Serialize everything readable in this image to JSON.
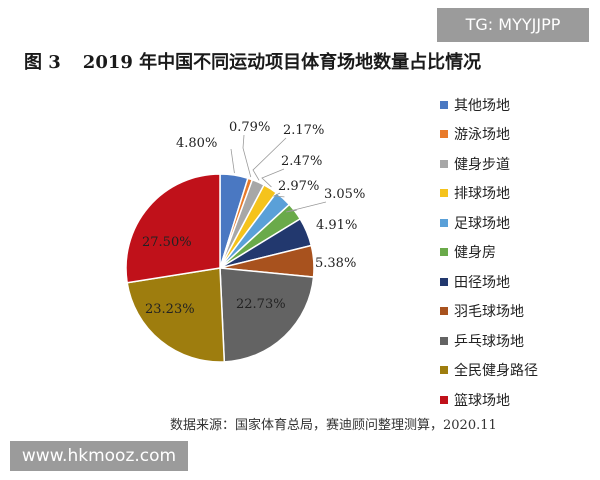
{
  "title": {
    "fig": "图 3",
    "text": "2019 年中国不同运动项目体育场地数量占比情况"
  },
  "watermark_top": "TG: MYYJJPP",
  "watermark_bottom": "www.hkmooz.com",
  "source": "数据来源：国家体育总局，赛迪顾问整理测算，2020.11",
  "chart_data": {
    "type": "pie",
    "legend_position": "right",
    "slices": [
      {
        "name": "其他场地",
        "value": 4.8,
        "label": "4.80%",
        "color": "#4a78c2"
      },
      {
        "name": "游泳场地",
        "value": 0.79,
        "label": "0.79%",
        "color": "#e87a2a"
      },
      {
        "name": "健身步道",
        "value": 2.17,
        "label": "2.17%",
        "color": "#a7a7a7"
      },
      {
        "name": "排球场地",
        "value": 2.47,
        "label": "2.47%",
        "color": "#f5c31c"
      },
      {
        "name": "足球场地",
        "value": 2.97,
        "label": "2.97%",
        "color": "#5aa0d8"
      },
      {
        "name": "健身房",
        "value": 3.05,
        "label": "3.05%",
        "color": "#6aaa4a"
      },
      {
        "name": "田径场地",
        "value": 4.91,
        "label": "4.91%",
        "color": "#22386e"
      },
      {
        "name": "羽毛球场地",
        "value": 5.38,
        "label": "5.38%",
        "color": "#a8521e"
      },
      {
        "name": "乒乓球场地",
        "value": 22.73,
        "label": "22.73%",
        "color": "#636363"
      },
      {
        "name": "全民健身路径",
        "value": 23.23,
        "label": "23.23%",
        "color": "#9e7d0e"
      },
      {
        "name": "篮球场地",
        "value": 27.5,
        "label": "27.50%",
        "color": "#c0111a"
      }
    ]
  }
}
